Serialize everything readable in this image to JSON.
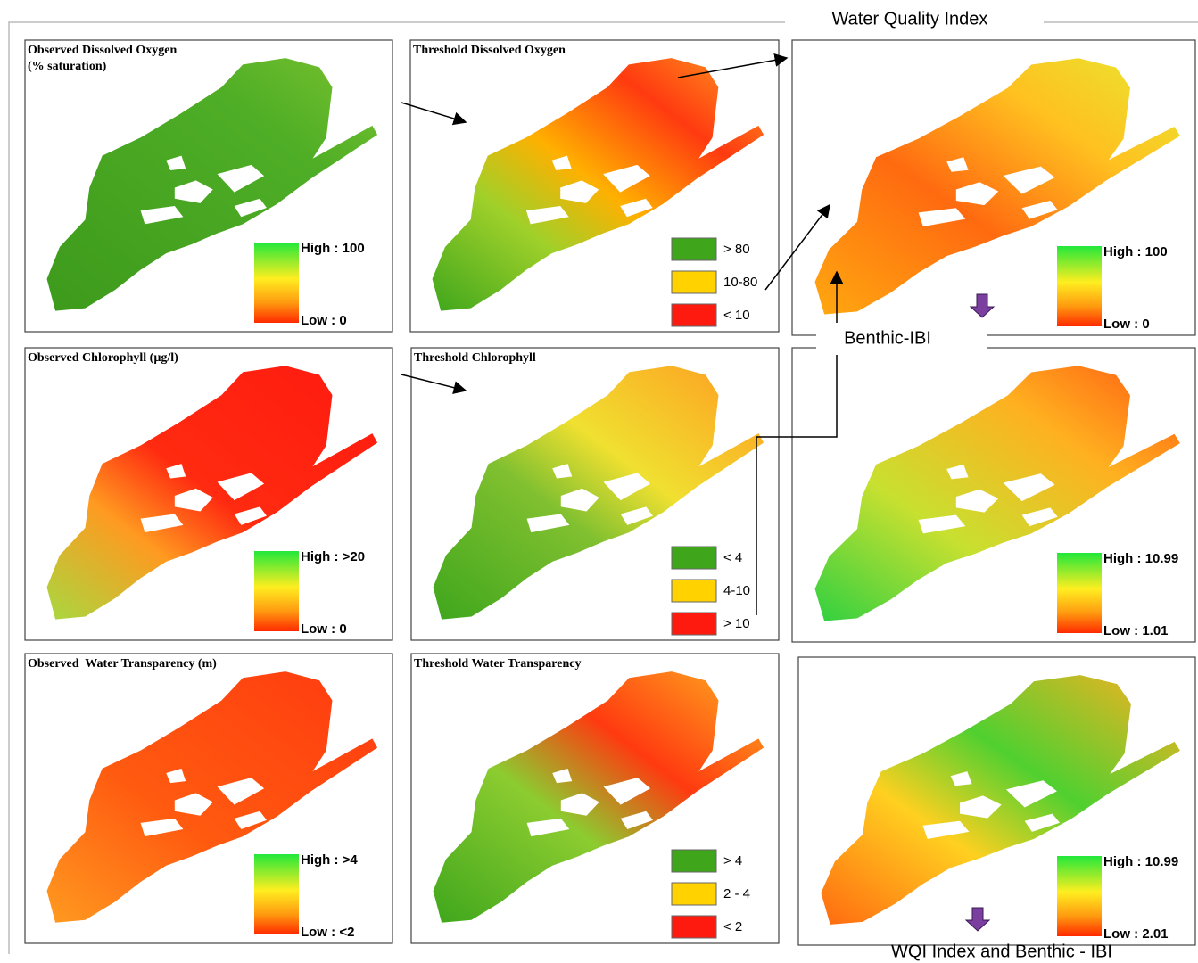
{
  "title": "Water Quality Index",
  "benthic_label": "Benthic-IBI",
  "footer": "WQI Index and Benthic - IBI",
  "panels": [
    {
      "title": [
        "Observed Dissolved Oxygen",
        "(% saturation)"
      ],
      "legend": {
        "high": "High : 100",
        "low": "Low : 0"
      }
    },
    {
      "title": [
        "Threshold Dissolved Oxygen"
      ],
      "legend": {
        "classes": [
          {
            "label": "> 80",
            "color": "#3fa61c"
          },
          {
            "label": "10-80",
            "color": "#ffd200"
          },
          {
            "label": "< 10",
            "color": "#ff1a10"
          }
        ]
      }
    },
    {
      "title": [],
      "legend": {
        "high": "High : 100",
        "low": "Low : 0"
      }
    },
    {
      "title": [
        "Observed Chlorophyll (µg/l)"
      ],
      "legend": {
        "high": "High : >20",
        "low": "Low : 0"
      }
    },
    {
      "title": [
        "Threshold Chlorophyll"
      ],
      "legend": {
        "classes": [
          {
            "label": "< 4",
            "color": "#3fa61c"
          },
          {
            "label": "4-10",
            "color": "#ffd200"
          },
          {
            "label": "> 10",
            "color": "#ff1a10"
          }
        ]
      }
    },
    {
      "title": [],
      "legend": {
        "high": "High : 10.99",
        "low": "Low : 1.01"
      }
    },
    {
      "title": [
        "Observed  Water Transparency (m)"
      ],
      "legend": {
        "high": "High : >4",
        "low": "Low : <2"
      }
    },
    {
      "title": [
        "Threshold Water Transparency"
      ],
      "legend": {
        "classes": [
          {
            "label": "> 4",
            "color": "#3fa61c"
          },
          {
            "label": "2 - 4",
            "color": "#ffd200"
          },
          {
            "label": "< 2",
            "color": "#ff1a10"
          }
        ]
      }
    },
    {
      "title": [],
      "legend": {
        "high": "High : 10.99",
        "low": "Low : 2.01"
      }
    }
  ]
}
